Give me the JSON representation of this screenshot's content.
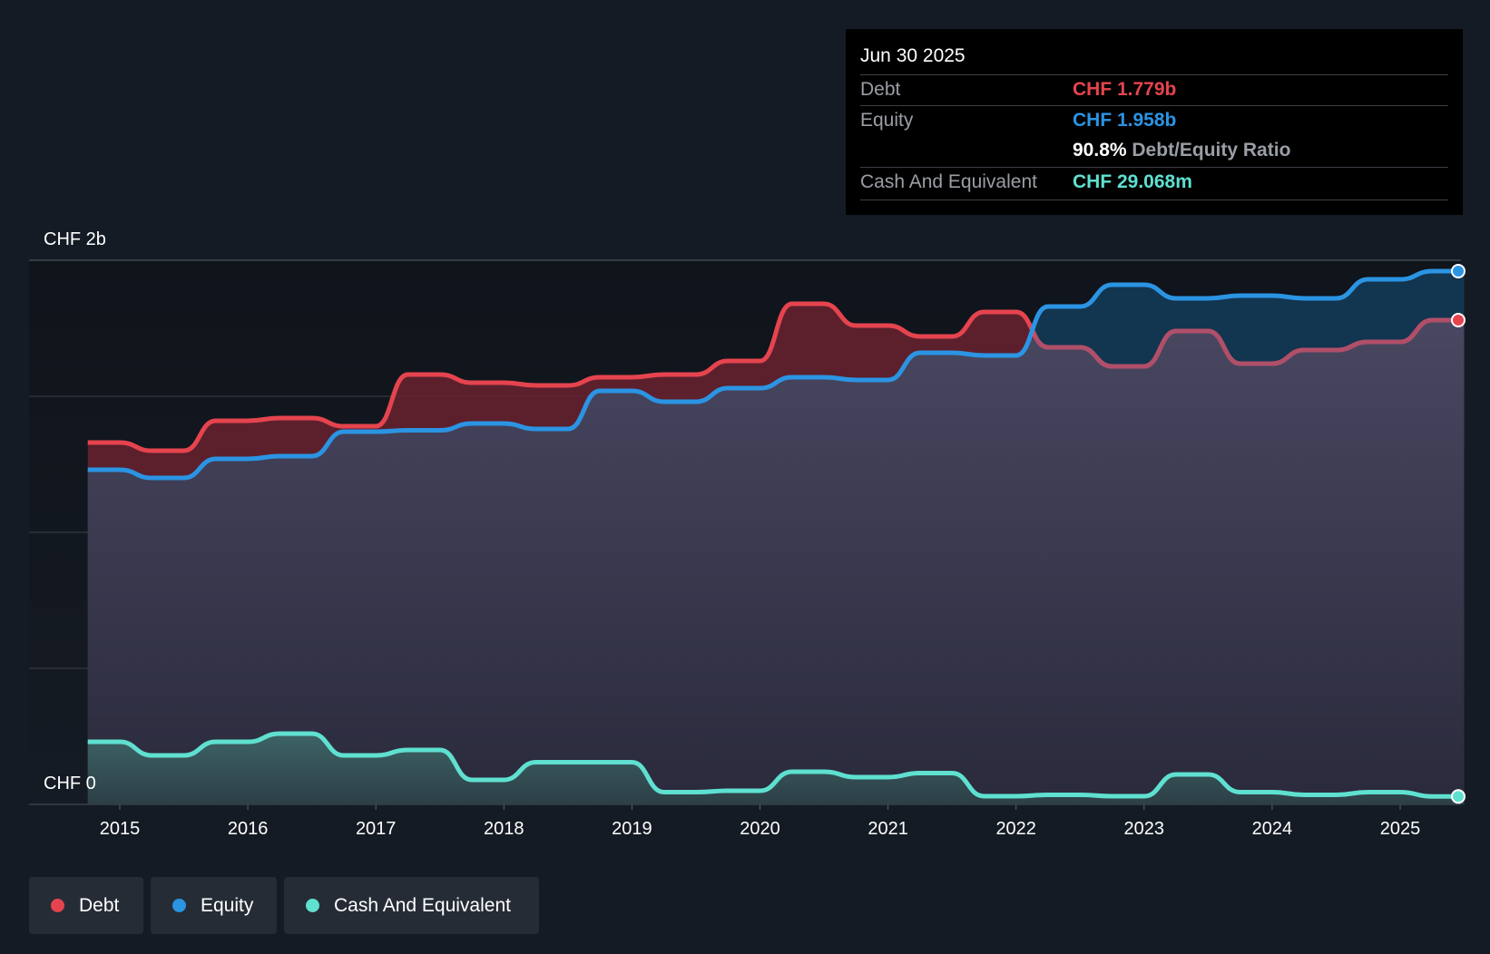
{
  "colors": {
    "debt": "#e5444e",
    "equity": "#2b94e3",
    "cash": "#5fe0d0",
    "grid": "#3a3f49"
  },
  "tooltip": {
    "date": "Jun 30 2025",
    "debt_label": "Debt",
    "debt_value": "CHF 1.779b",
    "equity_label": "Equity",
    "equity_value": "CHF 1.958b",
    "ratio_value": "90.8%",
    "ratio_label": "Debt/Equity Ratio",
    "cash_label": "Cash And Equivalent",
    "cash_value": "CHF 29.068m"
  },
  "legend": {
    "debt": "Debt",
    "equity": "Equity",
    "cash": "Cash And Equivalent"
  },
  "chart_data": {
    "type": "area",
    "title": "",
    "xlabel": "",
    "ylabel": "",
    "y_top_label": "CHF 2b",
    "y_bottom_label": "CHF 0",
    "ylim": [
      0,
      2.0
    ],
    "xlim": [
      2014.5,
      2025.5
    ],
    "x_ticks": [
      "2015",
      "2016",
      "2017",
      "2018",
      "2019",
      "2020",
      "2021",
      "2022",
      "2023",
      "2024",
      "2025"
    ],
    "series": [
      {
        "name": "Debt",
        "x": [
          2014.75,
          2015.0,
          2015.25,
          2015.5,
          2015.75,
          2016.0,
          2016.25,
          2016.5,
          2016.75,
          2017.0,
          2017.25,
          2017.5,
          2017.75,
          2018.0,
          2018.25,
          2018.5,
          2018.75,
          2019.0,
          2019.25,
          2019.5,
          2019.75,
          2020.0,
          2020.25,
          2020.5,
          2020.75,
          2021.0,
          2021.25,
          2021.5,
          2021.75,
          2022.0,
          2022.25,
          2022.5,
          2022.75,
          2023.0,
          2023.25,
          2023.5,
          2023.75,
          2024.0,
          2024.25,
          2024.5,
          2024.75,
          2025.0,
          2025.25,
          2025.5
        ],
        "values": [
          1.33,
          1.33,
          1.3,
          1.3,
          1.41,
          1.41,
          1.42,
          1.42,
          1.39,
          1.39,
          1.58,
          1.58,
          1.55,
          1.55,
          1.54,
          1.54,
          1.57,
          1.57,
          1.58,
          1.58,
          1.63,
          1.63,
          1.84,
          1.84,
          1.76,
          1.76,
          1.72,
          1.72,
          1.81,
          1.81,
          1.68,
          1.68,
          1.61,
          1.61,
          1.74,
          1.74,
          1.62,
          1.62,
          1.67,
          1.67,
          1.7,
          1.7,
          1.78,
          1.78
        ]
      },
      {
        "name": "Equity",
        "x": [
          2014.75,
          2015.0,
          2015.25,
          2015.5,
          2015.75,
          2016.0,
          2016.25,
          2016.5,
          2016.75,
          2017.0,
          2017.25,
          2017.5,
          2017.75,
          2018.0,
          2018.25,
          2018.5,
          2018.75,
          2019.0,
          2019.25,
          2019.5,
          2019.75,
          2020.0,
          2020.25,
          2020.5,
          2020.75,
          2021.0,
          2021.25,
          2021.5,
          2021.75,
          2022.0,
          2022.25,
          2022.5,
          2022.75,
          2023.0,
          2023.25,
          2023.5,
          2023.75,
          2024.0,
          2024.25,
          2024.5,
          2024.75,
          2025.0,
          2025.25,
          2025.5
        ],
        "values": [
          1.23,
          1.23,
          1.2,
          1.2,
          1.27,
          1.27,
          1.28,
          1.28,
          1.37,
          1.37,
          1.375,
          1.375,
          1.4,
          1.4,
          1.38,
          1.38,
          1.52,
          1.52,
          1.48,
          1.48,
          1.53,
          1.53,
          1.57,
          1.57,
          1.56,
          1.56,
          1.66,
          1.66,
          1.65,
          1.65,
          1.83,
          1.83,
          1.91,
          1.91,
          1.86,
          1.86,
          1.87,
          1.87,
          1.86,
          1.86,
          1.93,
          1.93,
          1.96,
          1.96
        ]
      },
      {
        "name": "Cash And Equivalent",
        "x": [
          2014.75,
          2015.0,
          2015.25,
          2015.5,
          2015.75,
          2016.0,
          2016.25,
          2016.5,
          2016.75,
          2017.0,
          2017.25,
          2017.5,
          2017.75,
          2018.0,
          2018.25,
          2018.5,
          2018.75,
          2019.0,
          2019.25,
          2019.5,
          2019.75,
          2020.0,
          2020.25,
          2020.5,
          2020.75,
          2021.0,
          2021.25,
          2021.5,
          2021.75,
          2022.0,
          2022.25,
          2022.5,
          2022.75,
          2023.0,
          2023.25,
          2023.5,
          2023.75,
          2024.0,
          2024.25,
          2024.5,
          2024.75,
          2025.0,
          2025.25,
          2025.5
        ],
        "values": [
          0.23,
          0.23,
          0.18,
          0.18,
          0.23,
          0.23,
          0.26,
          0.26,
          0.18,
          0.18,
          0.2,
          0.2,
          0.09,
          0.09,
          0.155,
          0.155,
          0.155,
          0.155,
          0.045,
          0.045,
          0.05,
          0.05,
          0.12,
          0.12,
          0.1,
          0.1,
          0.115,
          0.115,
          0.03,
          0.03,
          0.035,
          0.035,
          0.03,
          0.03,
          0.11,
          0.11,
          0.045,
          0.045,
          0.035,
          0.035,
          0.045,
          0.045,
          0.029,
          0.029
        ]
      }
    ]
  }
}
